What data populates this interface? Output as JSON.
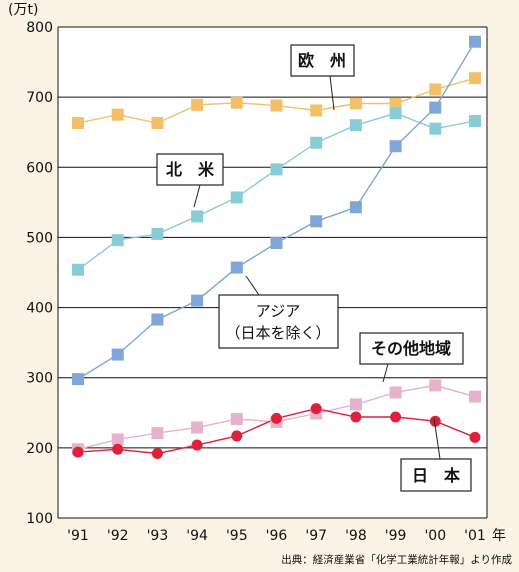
{
  "chart_data": {
    "type": "line",
    "unit_label": "(万t)",
    "x_suffix": "年",
    "categories": [
      "'91",
      "'92",
      "'93",
      "'94",
      "'95",
      "'96",
      "'97",
      "'98",
      "'99",
      "'00",
      "'01"
    ],
    "ylim": [
      100,
      800
    ],
    "yticks": [
      100,
      200,
      300,
      400,
      500,
      600,
      700,
      800
    ],
    "grid": true,
    "series": [
      {
        "name": "欧　州",
        "color": "#f2c068",
        "marker": "square",
        "values": [
          663,
          675,
          663,
          689,
          692,
          688,
          681,
          691,
          691,
          711,
          727
        ]
      },
      {
        "name": "北　米",
        "color": "#88cdd6",
        "marker": "square",
        "values": [
          454,
          496,
          505,
          530,
          557,
          597,
          635,
          660,
          677,
          655,
          666
        ]
      },
      {
        "name": "アジア",
        "name_line2": "（日本を除く）",
        "color": "#7fa6d6",
        "marker": "square",
        "values": [
          298,
          333,
          383,
          410,
          457,
          492,
          523,
          543,
          630,
          685,
          779
        ]
      },
      {
        "name": "その他地域",
        "color": "#e6b2cd",
        "marker": "square",
        "values": [
          198,
          212,
          221,
          229,
          241,
          237,
          249,
          262,
          279,
          289,
          273
        ]
      },
      {
        "name": "日　本",
        "color": "#e0203a",
        "marker": "circle",
        "values": [
          194,
          198,
          192,
          204,
          217,
          242,
          256,
          244,
          244,
          238,
          215
        ]
      }
    ],
    "source": "出典：経済産業省「化学工業統計年報」より作成"
  }
}
